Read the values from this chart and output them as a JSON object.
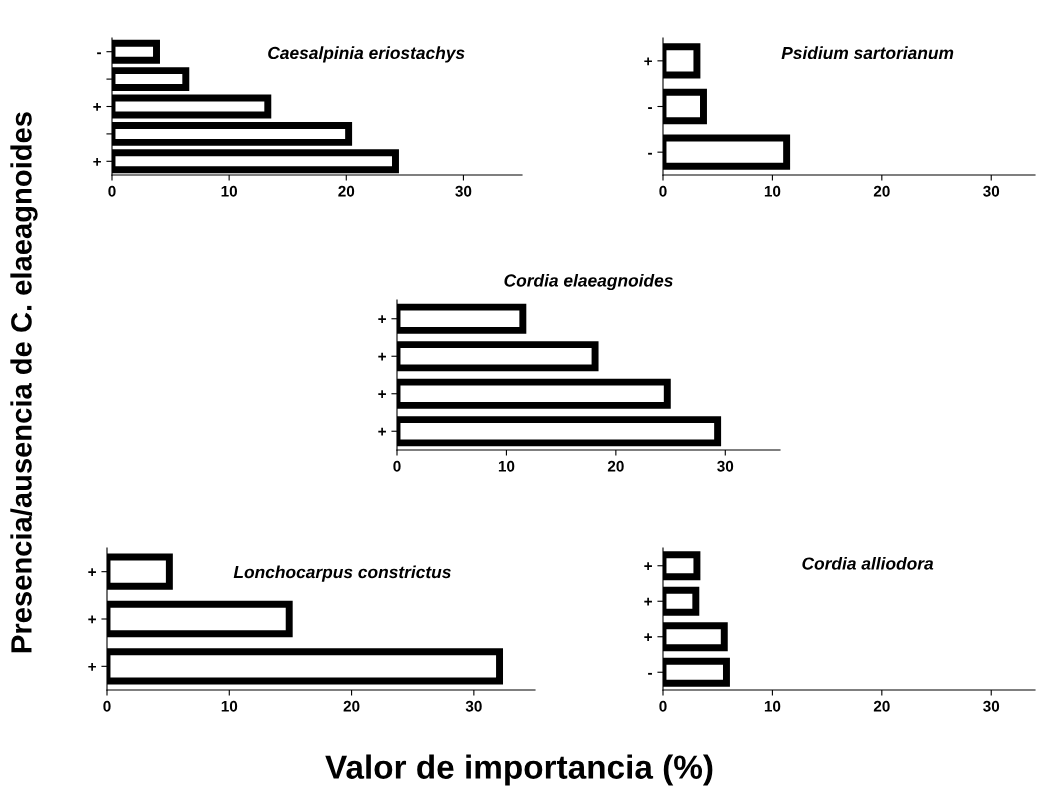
{
  "chart_data": [
    {
      "type": "bar",
      "orientation": "horizontal",
      "title": "Caesalpinia eriostachys",
      "ylabel": "Presencia/ausencia de C. elaeagnoides",
      "xlabel": "Valor de importancia (%)",
      "categories": [
        "-",
        null,
        "+",
        null,
        "+"
      ],
      "values": [
        3.8,
        6.3,
        13.3,
        20.2,
        24.2
      ],
      "color": "#000000",
      "xlim": [
        0,
        35
      ],
      "xticks": [
        0,
        10,
        20,
        30
      ]
    },
    {
      "type": "bar",
      "orientation": "horizontal",
      "title": "Psidium sartorianum",
      "categories": [
        "+",
        "-",
        "-"
      ],
      "values": [
        3.1,
        3.7,
        11.3
      ],
      "color": "#000000",
      "xlim": [
        0,
        34
      ],
      "xticks": [
        0,
        10,
        20,
        30
      ]
    },
    {
      "type": "bar",
      "orientation": "horizontal",
      "title": "Cordia elaeagnoides",
      "categories": [
        "+",
        "+",
        "+",
        "+"
      ],
      "values": [
        11.5,
        18.1,
        24.7,
        29.3
      ],
      "color": "#000000",
      "xlim": [
        0,
        35
      ],
      "xticks": [
        0,
        10,
        20,
        30
      ]
    },
    {
      "type": "bar",
      "orientation": "horizontal",
      "title": "Lonchocarpus constrictus",
      "categories": [
        "+",
        "+",
        "+"
      ],
      "values": [
        5.1,
        14.9,
        32.1
      ],
      "color": "#000000",
      "xlim": [
        0,
        35
      ],
      "xticks": [
        0,
        10,
        20,
        30
      ]
    },
    {
      "type": "bar",
      "orientation": "horizontal",
      "title": "Cordia alliodora",
      "categories": [
        "+",
        "+",
        "+",
        "-"
      ],
      "values": [
        3.1,
        3.0,
        5.6,
        5.8
      ],
      "color": "#000000",
      "xlim": [
        0,
        34
      ],
      "xticks": [
        0,
        10,
        20,
        30
      ]
    }
  ]
}
